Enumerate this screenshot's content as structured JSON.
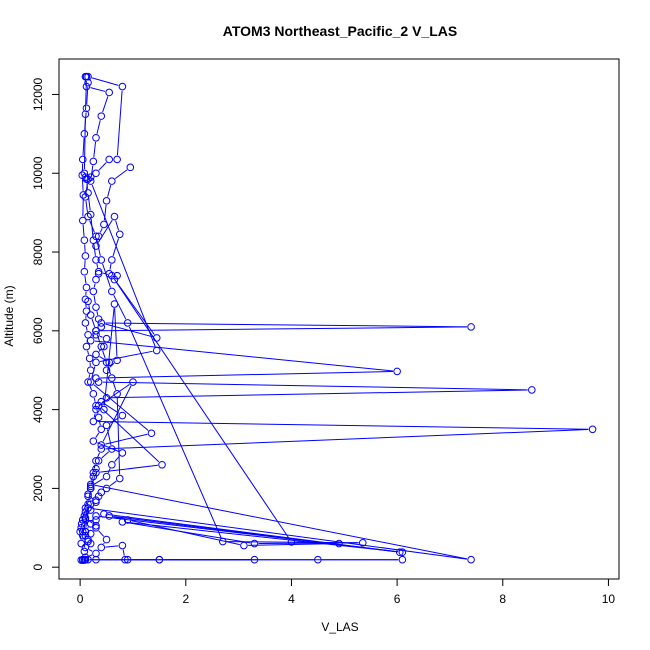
{
  "chart_data": {
    "type": "line",
    "title": "ATOM3 Northeast_Pacific_2 V_LAS",
    "xlabel": "V_LAS",
    "ylabel": "Altitude (m)",
    "xlim": [
      -0.4,
      10.2
    ],
    "ylim": [
      -300,
      12900
    ],
    "xticks": [
      0,
      2,
      4,
      6,
      8,
      10
    ],
    "yticks": [
      0,
      2000,
      4000,
      6000,
      8000,
      10000,
      12000
    ],
    "grid": false,
    "legend": "none",
    "marker": "open-circle",
    "color": "#0000ff",
    "series": [
      {
        "x": [
          0.12,
          0.15,
          0.12,
          0.08,
          0.05,
          0.04,
          0.06,
          0.05,
          0.08,
          0.1,
          0.08,
          0.12,
          0.1,
          0.12,
          0.1,
          0.15,
          0.12,
          0.18,
          0.2,
          0.15,
          0.25,
          0.3,
          0.35,
          0.4,
          0.25,
          0.8,
          0.6,
          0.5,
          0.2,
          0.15,
          0.3,
          0.2,
          0.1,
          0.3,
          0.2,
          0.15,
          0.1,
          0.3,
          0.1,
          0.05,
          0.02,
          0.05,
          0.08,
          0.1,
          0.3,
          0.9,
          3.3,
          1.5,
          0.1,
          0.05
        ],
        "y": [
          12450,
          12300,
          11650,
          11000,
          10350,
          9950,
          9450,
          8800,
          8300,
          7900,
          7500,
          7100,
          6800,
          6500,
          6200,
          5900,
          5600,
          5300,
          5000,
          4700,
          4400,
          4100,
          3800,
          3500,
          3200,
          2900,
          2600,
          2300,
          2050,
          1850,
          1650,
          1450,
          1250,
          1050,
          850,
          650,
          500,
          350,
          250,
          180,
          180,
          180,
          180,
          190,
          190,
          190,
          190,
          190,
          190,
          190
        ]
      },
      {
        "x": [
          0.12,
          0.1,
          0.08,
          0.1,
          0.12,
          0.15,
          0.2,
          0.25,
          0.3,
          0.35,
          0.6,
          1.45,
          0.4,
          7.4,
          0.3,
          0.2,
          6.0,
          0.3,
          0.35,
          8.55,
          0.5,
          0.3,
          0.25,
          9.7,
          0.4,
          0.3,
          0.25,
          0.2,
          7.4,
          0.15,
          0.1,
          0.08
        ],
        "y": [
          12450,
          11500,
          10000,
          9900,
          9850,
          9500,
          8950,
          8300,
          7800,
          7500,
          7400,
          5820,
          6200,
          6100,
          6000,
          5750,
          4970,
          4800,
          4700,
          4500,
          4300,
          4000,
          3700,
          3500,
          3000,
          2700,
          2400,
          2100,
          190,
          1500,
          900,
          400
        ]
      },
      {
        "x": [
          0.1,
          0.12,
          0.55,
          0.4,
          0.3,
          0.25,
          0.2,
          1.45,
          0.3,
          0.2,
          1.35,
          0.4,
          1.0,
          0.35,
          1.55,
          0.3,
          0.2,
          0.15,
          0.1,
          0.05
        ],
        "y": [
          12450,
          12200,
          12050,
          11450,
          10900,
          10300,
          9800,
          5500,
          5200,
          4700,
          3400,
          3100,
          4700,
          4100,
          2600,
          2400,
          2000,
          1600,
          1200,
          800
        ]
      },
      {
        "x": [
          0.15,
          0.8,
          0.7,
          0.55,
          0.3,
          0.2,
          0.15,
          0.1,
          0.15,
          0.3,
          0.4,
          0.6,
          0.9,
          2.7,
          5.35,
          3.3,
          0.8,
          6.1,
          0.3,
          0.2,
          0.1
        ],
        "y": [
          12450,
          12200,
          10350,
          10350,
          10000,
          9900,
          9850,
          9400,
          8900,
          8400,
          7800,
          7000,
          6200,
          650,
          620,
          600,
          1150,
          380,
          1300,
          1100,
          900
        ]
      },
      {
        "x": [
          0.95,
          0.6,
          0.5,
          0.45,
          0.35,
          0.3,
          0.65,
          0.75,
          0.6,
          0.55,
          0.7,
          0.65,
          4.0,
          4.9,
          3.1,
          0.9,
          0.55,
          6.05,
          0.45,
          0.3,
          0.2,
          0.3,
          0.5,
          0.4,
          0.8,
          0.85,
          1.5,
          4.5,
          6.1,
          0.15
        ],
        "y": [
          10150,
          9800,
          9300,
          8700,
          8400,
          8150,
          8900,
          8450,
          7800,
          7450,
          7400,
          7300,
          640,
          600,
          550,
          1200,
          1300,
          380,
          1350,
          1200,
          1100,
          1000,
          700,
          500,
          550,
          190,
          190,
          190,
          190,
          190
        ]
      },
      {
        "x": [
          0.35,
          0.3,
          0.25,
          0.3,
          0.35,
          0.4,
          0.3,
          0.5,
          0.45,
          0.3,
          0.55,
          0.5,
          0.7,
          0.65,
          0.45,
          0.4,
          0.8,
          0.5,
          0.6,
          0.35,
          0.3,
          0.25,
          0.2,
          0.15,
          0.1,
          0.05,
          0.0,
          0.02
        ],
        "y": [
          7450,
          7300,
          7000,
          6600,
          6300,
          6100,
          5900,
          5800,
          5600,
          5400,
          5200,
          5000,
          5250,
          6680,
          4000,
          4200,
          3850,
          3600,
          3000,
          2700,
          2500,
          2300,
          2000,
          1800,
          1500,
          1200,
          900,
          600
        ]
      },
      {
        "x": [
          0.15,
          0.2,
          0.3,
          0.4,
          0.5,
          0.6,
          0.7,
          0.75,
          0.5,
          0.4,
          0.35,
          0.3,
          0.2,
          0.15,
          0.1,
          0.08,
          0.05,
          0.03,
          0.02,
          0.05,
          0.1,
          0.15,
          0.2
        ],
        "y": [
          6750,
          6400,
          6000,
          5600,
          5200,
          4800,
          4400,
          2250,
          2000,
          1900,
          1800,
          1700,
          1600,
          1500,
          1400,
          1300,
          1200,
          1100,
          1000,
          900,
          800,
          700,
          600
        ]
      }
    ]
  }
}
